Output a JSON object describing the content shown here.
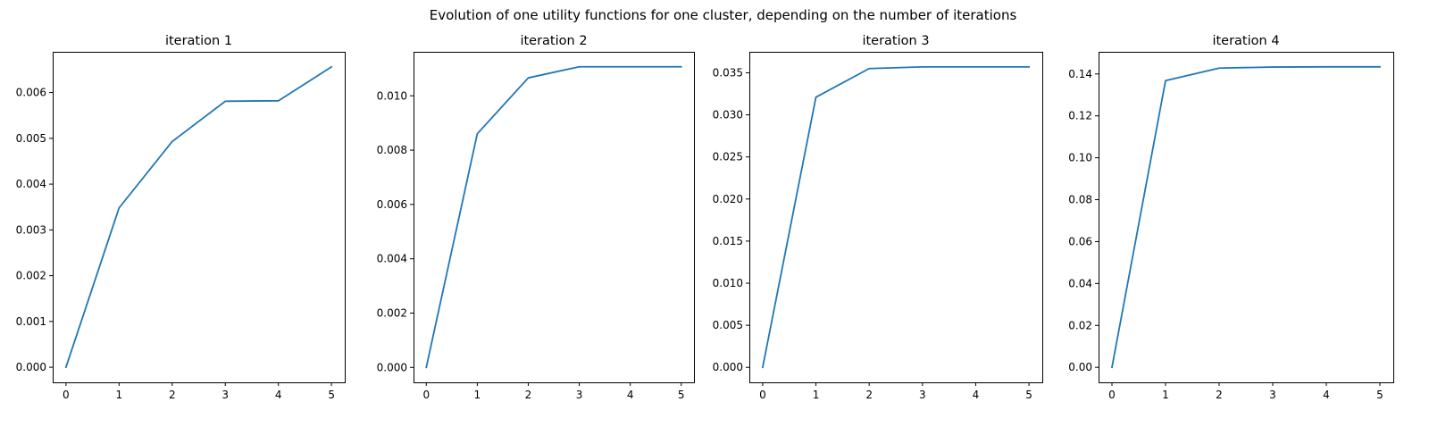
{
  "figure": {
    "suptitle": "Evolution of one utility functions for one cluster, depending on the number of iterations",
    "line_color": "#1f77b4"
  },
  "chart_data": [
    {
      "type": "line",
      "title": "iteration 1",
      "xlabel": "",
      "ylabel": "",
      "x": [
        0,
        1,
        2,
        3,
        4,
        5
      ],
      "series": [
        {
          "values": [
            0.0,
            0.00348,
            0.00493,
            0.00581,
            0.00582,
            0.00656
          ]
        }
      ],
      "xlim": [
        -0.25,
        5.25
      ],
      "ylim": [
        -0.00033,
        0.00689
      ],
      "xticks": [
        0,
        1,
        2,
        3,
        4,
        5
      ],
      "xtick_labels": [
        "0",
        "1",
        "2",
        "3",
        "4",
        "5"
      ],
      "yticks": [
        0.0,
        0.001,
        0.002,
        0.003,
        0.004,
        0.005,
        0.006
      ],
      "ytick_labels": [
        "0.000",
        "0.001",
        "0.002",
        "0.003",
        "0.004",
        "0.005",
        "0.006"
      ],
      "grid": false,
      "legend": "none"
    },
    {
      "type": "line",
      "title": "iteration 2",
      "xlabel": "",
      "ylabel": "",
      "x": [
        0,
        1,
        2,
        3,
        4,
        5
      ],
      "series": [
        {
          "values": [
            0.0,
            0.0086,
            0.01066,
            0.01107,
            0.01107,
            0.01107
          ]
        }
      ],
      "xlim": [
        -0.25,
        5.25
      ],
      "ylim": [
        -0.00055,
        0.01162
      ],
      "xticks": [
        0,
        1,
        2,
        3,
        4,
        5
      ],
      "xtick_labels": [
        "0",
        "1",
        "2",
        "3",
        "4",
        "5"
      ],
      "yticks": [
        0.0,
        0.002,
        0.004,
        0.006,
        0.008,
        0.01
      ],
      "ytick_labels": [
        "0.000",
        "0.002",
        "0.004",
        "0.006",
        "0.008",
        "0.010"
      ],
      "grid": false,
      "legend": "none"
    },
    {
      "type": "line",
      "title": "iteration 3",
      "xlabel": "",
      "ylabel": "",
      "x": [
        0,
        1,
        2,
        3,
        4,
        5
      ],
      "series": [
        {
          "values": [
            0.0,
            0.0321,
            0.0355,
            0.0357,
            0.0357,
            0.0357
          ]
        }
      ],
      "xlim": [
        -0.25,
        5.25
      ],
      "ylim": [
        -0.00178,
        0.03749
      ],
      "xticks": [
        0,
        1,
        2,
        3,
        4,
        5
      ],
      "xtick_labels": [
        "0",
        "1",
        "2",
        "3",
        "4",
        "5"
      ],
      "yticks": [
        0.0,
        0.005,
        0.01,
        0.015,
        0.02,
        0.025,
        0.03,
        0.035
      ],
      "ytick_labels": [
        "0.000",
        "0.005",
        "0.010",
        "0.015",
        "0.020",
        "0.025",
        "0.030",
        "0.035"
      ],
      "grid": false,
      "legend": "none"
    },
    {
      "type": "line",
      "title": "iteration 4",
      "xlabel": "",
      "ylabel": "",
      "x": [
        0,
        1,
        2,
        3,
        4,
        5
      ],
      "series": [
        {
          "values": [
            0.0,
            0.1368,
            0.1428,
            0.1433,
            0.1434,
            0.1434
          ]
        }
      ],
      "xlim": [
        -0.25,
        5.25
      ],
      "ylim": [
        -0.00717,
        0.15057
      ],
      "xticks": [
        0,
        1,
        2,
        3,
        4,
        5
      ],
      "xtick_labels": [
        "0",
        "1",
        "2",
        "3",
        "4",
        "5"
      ],
      "yticks": [
        0.0,
        0.02,
        0.04,
        0.06,
        0.08,
        0.1,
        0.12,
        0.14
      ],
      "ytick_labels": [
        "0.00",
        "0.02",
        "0.04",
        "0.06",
        "0.08",
        "0.10",
        "0.12",
        "0.14"
      ],
      "grid": false,
      "legend": "none"
    }
  ]
}
